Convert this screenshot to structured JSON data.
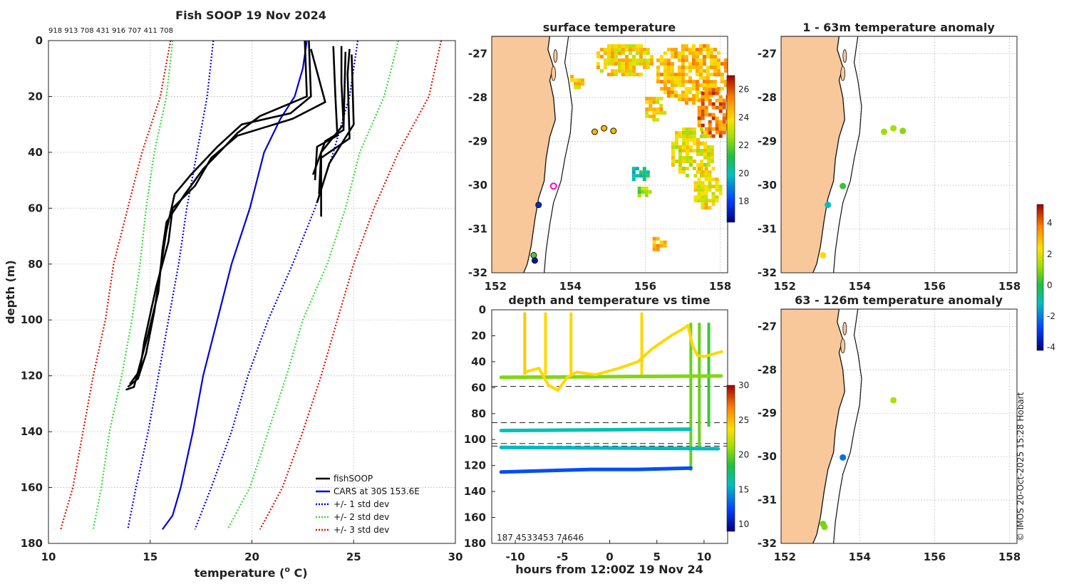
{
  "figure": {
    "main_title": "Fish SOOP 19 Nov 2024",
    "logger_ids": "918 913 708 431 916 707 411 708",
    "credit": "© IMOS 20-Oct-2025 15:28 Hobart"
  },
  "chart_data": [
    {
      "id": "profile",
      "type": "line",
      "title": "Fish SOOP 19 Nov 2024",
      "xlabel": "temperature (",
      "xlabel_sup": "o",
      "xlabel_end": " C)",
      "ylabel": "depth (m)",
      "xlim": [
        10,
        30
      ],
      "ylim": [
        180,
        0
      ],
      "x_ticks": [
        "10",
        "15",
        "20",
        "25",
        "30"
      ],
      "y_ticks": [
        "0",
        "20",
        "40",
        "60",
        "80",
        "100",
        "120",
        "140",
        "160",
        "180"
      ],
      "legend": [
        "fishSOOP",
        "CARS at 30S 153.6E",
        "+/- 1 std dev",
        "+/- 2 std dev",
        "+/- 3 std dev"
      ],
      "legend_colors": [
        "#000000",
        "#0000dd",
        "#0000dd",
        "#33dd33",
        "#dd1100"
      ],
      "cars_mean": [
        [
          22.7,
          0
        ],
        [
          22.5,
          10
        ],
        [
          22.1,
          20
        ],
        [
          21.4,
          28
        ],
        [
          20.6,
          40
        ],
        [
          19.9,
          60
        ],
        [
          19.0,
          80
        ],
        [
          18.3,
          100
        ],
        [
          17.6,
          120
        ],
        [
          17.1,
          140
        ],
        [
          16.5,
          160
        ],
        [
          16.1,
          170
        ],
        [
          15.6,
          175
        ]
      ],
      "std1_left": [
        [
          18.1,
          0
        ],
        [
          17.8,
          20
        ],
        [
          17.3,
          40
        ],
        [
          16.8,
          60
        ],
        [
          16.4,
          80
        ],
        [
          15.9,
          100
        ],
        [
          15.4,
          120
        ],
        [
          14.9,
          140
        ],
        [
          14.3,
          160
        ],
        [
          13.9,
          175
        ]
      ],
      "std1_right": [
        [
          25.2,
          0
        ],
        [
          24.8,
          20
        ],
        [
          24.0,
          40
        ],
        [
          23.1,
          60
        ],
        [
          22.0,
          80
        ],
        [
          20.8,
          100
        ],
        [
          19.8,
          120
        ],
        [
          19.0,
          140
        ],
        [
          18.0,
          160
        ],
        [
          17.2,
          175
        ]
      ],
      "std2_left": [
        [
          16.1,
          0
        ],
        [
          15.8,
          20
        ],
        [
          15.2,
          40
        ],
        [
          14.8,
          60
        ],
        [
          14.5,
          80
        ],
        [
          14.1,
          100
        ],
        [
          13.6,
          120
        ],
        [
          13.0,
          140
        ],
        [
          12.6,
          160
        ],
        [
          12.2,
          175
        ]
      ],
      "std2_right": [
        [
          27.2,
          0
        ],
        [
          26.5,
          20
        ],
        [
          25.3,
          40
        ],
        [
          24.6,
          60
        ],
        [
          23.7,
          80
        ],
        [
          22.5,
          100
        ],
        [
          21.7,
          120
        ],
        [
          20.8,
          140
        ],
        [
          19.9,
          160
        ],
        [
          18.8,
          175
        ]
      ],
      "std3_left": [
        [
          16.0,
          0
        ],
        [
          15.5,
          20
        ],
        [
          14.6,
          40
        ],
        [
          13.9,
          60
        ],
        [
          13.2,
          80
        ],
        [
          12.8,
          100
        ],
        [
          12.2,
          120
        ],
        [
          11.7,
          140
        ],
        [
          11.2,
          160
        ],
        [
          10.6,
          175
        ]
      ],
      "std3_right": [
        [
          29.3,
          0
        ],
        [
          28.7,
          20
        ],
        [
          27.2,
          40
        ],
        [
          26.0,
          60
        ],
        [
          25.0,
          80
        ],
        [
          24.2,
          100
        ],
        [
          23.4,
          120
        ],
        [
          22.5,
          140
        ],
        [
          21.5,
          160
        ],
        [
          20.4,
          175
        ]
      ],
      "fishsoop_profiles": [
        [
          [
            22.6,
            0
          ],
          [
            22.7,
            20
          ],
          [
            20.4,
            27
          ],
          [
            19.3,
            33
          ],
          [
            18.4,
            40
          ],
          [
            17.6,
            46
          ],
          [
            16.7,
            55
          ],
          [
            15.8,
            65
          ],
          [
            15.6,
            75
          ],
          [
            15.4,
            90
          ],
          [
            14.9,
            105
          ],
          [
            14.2,
            124
          ],
          [
            13.8,
            125
          ]
        ],
        [
          [
            22.8,
            0
          ],
          [
            22.9,
            20
          ],
          [
            21.9,
            26
          ],
          [
            19.5,
            30
          ],
          [
            18.3,
            38
          ],
          [
            17.0,
            48
          ],
          [
            16.2,
            55
          ],
          [
            15.8,
            68
          ],
          [
            15.5,
            82
          ],
          [
            15.2,
            97
          ],
          [
            14.8,
            112
          ],
          [
            14.4,
            121
          ],
          [
            13.9,
            124
          ]
        ],
        [
          [
            22.9,
            3
          ],
          [
            23.6,
            22
          ],
          [
            22.0,
            28
          ],
          [
            19.3,
            34
          ],
          [
            18.0,
            42
          ],
          [
            17.2,
            52
          ],
          [
            16.1,
            60
          ],
          [
            15.9,
            72
          ],
          [
            15.3,
            88
          ],
          [
            14.7,
            108
          ],
          [
            14.5,
            118
          ],
          [
            14.0,
            123
          ]
        ],
        [
          [
            23.1,
            50
          ],
          [
            23.2,
            38
          ],
          [
            24.2,
            34
          ],
          [
            24.1,
            20
          ],
          [
            24.0,
            2
          ]
        ],
        [
          [
            23.3,
            55
          ],
          [
            23.4,
            40
          ],
          [
            24.5,
            30
          ],
          [
            24.4,
            15
          ],
          [
            24.4,
            2
          ]
        ],
        [
          [
            23.4,
            63
          ],
          [
            23.4,
            42
          ],
          [
            24.8,
            35
          ],
          [
            24.7,
            12
          ],
          [
            24.8,
            3
          ]
        ],
        [
          [
            23.2,
            58
          ],
          [
            23.8,
            44
          ],
          [
            25.0,
            30
          ],
          [
            24.9,
            5
          ]
        ],
        [
          [
            23.0,
            48
          ],
          [
            23.6,
            36
          ],
          [
            24.5,
            32
          ],
          [
            24.6,
            4
          ]
        ]
      ]
    },
    {
      "id": "surface_map",
      "type": "heatmap",
      "title": "surface temperature",
      "x_ticks": [
        "152",
        "154",
        "156",
        "158"
      ],
      "y_ticks": [
        "-27",
        "-28",
        "-29",
        "-30",
        "-31",
        "-32"
      ],
      "xlim": [
        151.9,
        158.2
      ],
      "ylim": [
        -32,
        -26.6
      ],
      "colorbar_ticks": [
        "18",
        "20",
        "22",
        "24",
        "26"
      ],
      "colorbar_range": [
        16.5,
        27
      ],
      "sst_patches": [
        {
          "lon": 157.2,
          "lat": -27.4,
          "rx": 1.0,
          "ry": 0.7,
          "temp": 24.5
        },
        {
          "lon": 157.8,
          "lat": -28.3,
          "rx": 0.5,
          "ry": 0.6,
          "temp": 25.5
        },
        {
          "lon": 155.4,
          "lat": -27.1,
          "rx": 0.8,
          "ry": 0.4,
          "temp": 24.0
        },
        {
          "lon": 156.2,
          "lat": -28.2,
          "rx": 0.3,
          "ry": 0.3,
          "temp": 24.0
        },
        {
          "lon": 157.2,
          "lat": -29.2,
          "rx": 0.6,
          "ry": 0.6,
          "temp": 23.5
        },
        {
          "lon": 157.6,
          "lat": -30.0,
          "rx": 0.4,
          "ry": 0.5,
          "temp": 23.8
        },
        {
          "lon": 155.8,
          "lat": -29.7,
          "rx": 0.25,
          "ry": 0.2,
          "temp": 20.5
        },
        {
          "lon": 155.9,
          "lat": -30.1,
          "rx": 0.2,
          "ry": 0.15,
          "temp": 22.5
        },
        {
          "lon": 154.1,
          "lat": -27.6,
          "rx": 0.2,
          "ry": 0.2,
          "temp": 24.2
        },
        {
          "lon": 156.3,
          "lat": -31.3,
          "rx": 0.2,
          "ry": 0.2,
          "temp": 24.5
        }
      ],
      "stations": [
        {
          "lon": 154.65,
          "lat": -28.78,
          "value": 24.5
        },
        {
          "lon": 154.9,
          "lat": -28.7,
          "value": 24.5
        },
        {
          "lon": 155.15,
          "lat": -28.76,
          "value": 24.5
        },
        {
          "lon": 153.55,
          "lat": -30.02,
          "value": null
        },
        {
          "lon": 153.15,
          "lat": -30.45,
          "value": 17.5
        },
        {
          "lon": 153.02,
          "lat": -31.6,
          "value": 21.8
        },
        {
          "lon": 153.05,
          "lat": -31.72,
          "value": 17.0
        }
      ]
    },
    {
      "id": "anom_shallow",
      "type": "scatter",
      "title": "1 - 63m temperature anomaly",
      "x_ticks": [
        "152",
        "154",
        "156",
        "158"
      ],
      "y_ticks": [
        "-27",
        "-28",
        "-29",
        "-30",
        "-31",
        "-32"
      ],
      "points": [
        {
          "lon": 154.65,
          "lat": -28.78,
          "anomaly": 1.2
        },
        {
          "lon": 154.9,
          "lat": -28.7,
          "anomaly": 1.3
        },
        {
          "lon": 155.15,
          "lat": -28.76,
          "anomaly": 1.0
        },
        {
          "lon": 153.55,
          "lat": -30.02,
          "anomaly": 0.2
        },
        {
          "lon": 153.15,
          "lat": -30.45,
          "anomaly": -1.2
        },
        {
          "lon": 153.02,
          "lat": -31.6,
          "anomaly": 2.5
        }
      ]
    },
    {
      "id": "anom_deep",
      "type": "scatter",
      "title": "63 - 126m temperature anomaly",
      "x_ticks": [
        "152",
        "154",
        "156",
        "158"
      ],
      "y_ticks": [
        "-27",
        "-28",
        "-29",
        "-30",
        "-31",
        "-32"
      ],
      "points": [
        {
          "lon": 154.9,
          "lat": -28.7,
          "anomaly": 1.4
        },
        {
          "lon": 153.55,
          "lat": -30.02,
          "anomaly": -2.2
        },
        {
          "lon": 153.02,
          "lat": -31.55,
          "anomaly": 0.8
        },
        {
          "lon": 153.06,
          "lat": -31.62,
          "anomaly": 0.9
        }
      ],
      "colorbar_ticks": [
        "4",
        "2",
        "0",
        "-2",
        "-4"
      ],
      "colorbar_range": [
        -4.2,
        5.2
      ]
    },
    {
      "id": "timeseries",
      "type": "scatter",
      "title": "depth and temperature vs time",
      "xlabel": "hours from 12:00Z 19 Nov 24",
      "xlim": [
        -12.5,
        12.5
      ],
      "ylim": [
        180,
        0
      ],
      "x_ticks": [
        "-10",
        "-5",
        "0",
        "5",
        "10"
      ],
      "y_ticks": [
        "0",
        "20",
        "40",
        "60",
        "80",
        "100",
        "120",
        "140",
        "160",
        "180"
      ],
      "colorbar_ticks": [
        "10",
        "15",
        "20",
        "25",
        "30"
      ],
      "colorbar_range": [
        9,
        30
      ],
      "footer_label": "187   4533453 74646",
      "dashed_depths": [
        59,
        87,
        103,
        105
      ],
      "tracks": [
        {
          "times": [
            -11.5,
            11.8
          ],
          "depths": [
            52,
            51
          ],
          "temp": 20.5
        },
        {
          "times": [
            -11.5,
            8.5
          ],
          "depths": [
            93,
            92
          ],
          "temp": 16.0
        },
        {
          "times": [
            -11.5,
            11.5
          ],
          "depths": [
            106,
            107
          ],
          "temp": 15.5
        },
        {
          "times": [
            -11.5,
            -7,
            -2,
            3,
            8.6
          ],
          "depths": [
            125,
            124,
            123,
            123,
            122
          ],
          "temp": 12.5
        }
      ],
      "profile_lines": [
        {
          "time": -9.0,
          "d0": 2,
          "d1": 50,
          "temp": 24.5
        },
        {
          "time": -6.8,
          "d0": 2,
          "d1": 50,
          "temp": 24.0
        },
        {
          "time": -4.1,
          "d0": 2,
          "d1": 50,
          "temp": 24.0
        },
        {
          "time": 3.4,
          "d0": 2,
          "d1": 50,
          "temp": 24.0
        },
        {
          "time": 8.6,
          "d0": 10,
          "d1": 124,
          "temp": 20.0
        },
        {
          "time": 9.5,
          "d0": 10,
          "d1": 108,
          "temp": 20.0
        },
        {
          "time": 10.5,
          "d0": 10,
          "d1": 90,
          "temp": 19.0
        }
      ],
      "wiggle": {
        "times": [
          -9.0,
          -7.5,
          -6.5,
          -5.5,
          -4.5,
          -3.5,
          -1.5,
          1.0,
          3.0,
          4.5,
          6.5,
          7.7,
          8.3,
          8.8,
          9.3,
          10.0,
          11.0,
          12.0
        ],
        "depths": [
          48,
          45,
          58,
          62,
          52,
          48,
          50,
          45,
          40,
          30,
          20,
          15,
          12,
          28,
          35,
          36,
          34,
          32
        ],
        "temp": 24.0
      }
    }
  ]
}
